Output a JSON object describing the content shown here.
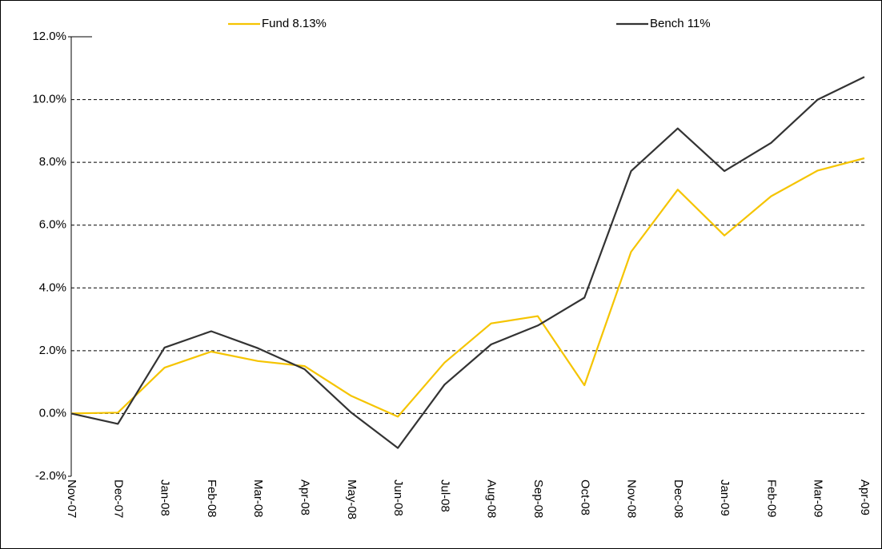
{
  "chart_data": {
    "type": "line",
    "categories": [
      "Nov-07",
      "Dec-07",
      "Jan-08",
      "Feb-08",
      "Mar-08",
      "Apr-08",
      "May-08",
      "Jun-08",
      "Jul-08",
      "Aug-08",
      "Sep-08",
      "Oct-08",
      "Nov-08",
      "Dec-08",
      "Jan-09",
      "Feb-09",
      "Mar-09",
      "Apr-09"
    ],
    "series": [
      {
        "name": "Fund 8.13%",
        "color": "#f5c400",
        "values": [
          0,
          0.03,
          1.46,
          1.97,
          1.67,
          1.51,
          0.56,
          -0.1,
          1.62,
          2.87,
          3.1,
          0.9,
          5.15,
          7.13,
          5.67,
          6.92,
          7.74,
          8.13
        ]
      },
      {
        "name": "Bench 11%",
        "color": "#333333",
        "values": [
          0,
          -0.33,
          2.1,
          2.62,
          2.08,
          1.41,
          0.03,
          -1.1,
          0.92,
          2.2,
          2.8,
          3.69,
          7.72,
          9.08,
          7.72,
          8.62,
          10.0,
          10.72
        ]
      }
    ],
    "ylim": [
      -2,
      12
    ],
    "yticks": [
      {
        "value": -2,
        "label": "-2.0%"
      },
      {
        "value": 0,
        "label": "0.0%"
      },
      {
        "value": 2,
        "label": "2.0%"
      },
      {
        "value": 4,
        "label": "4.0%"
      },
      {
        "value": 6,
        "label": "6.0%"
      },
      {
        "value": 8,
        "label": "8.0%"
      },
      {
        "value": 10,
        "label": "10.0%"
      },
      {
        "value": 12,
        "label": "12.0%"
      }
    ],
    "grid": true,
    "legend": "top"
  }
}
